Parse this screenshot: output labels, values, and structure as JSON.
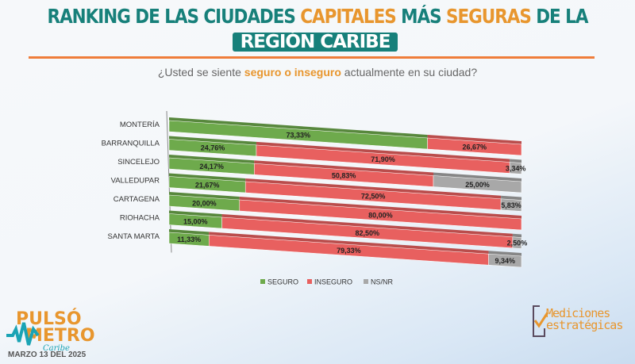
{
  "header": {
    "title_part1": "RANKING DE LAS CIUDADES ",
    "title_part2": "CAPITALES",
    "title_part3": " MÁS ",
    "title_part4": "SEGURAS",
    "title_part5": " DE LA",
    "title_line2": "REGIÓN CARIBE",
    "question_part1": "¿Usted se siente ",
    "question_part2": "seguro o inseguro",
    "question_part3": " actualmente en su ciudad?"
  },
  "colors": {
    "teal": "#17807a",
    "orange": "#e8962e",
    "rule": "#ef7d3a"
  },
  "chart_data": {
    "type": "bar",
    "orientation": "horizontal",
    "stacked": true,
    "style": "3d",
    "categories": [
      "MONTERÍA",
      "BARRANQUILLA",
      "SINCELEJO",
      "VALLEDUPAR",
      "CARTAGENA",
      "RIOHACHA",
      "SANTA MARTA"
    ],
    "series": [
      {
        "name": "SEGURO",
        "color": "#6eaa4c",
        "values": [
          73.33,
          24.76,
          24.17,
          21.67,
          20.0,
          15.0,
          11.33
        ],
        "labels": [
          "73,33%",
          "24,76%",
          "24,17%",
          "21,67%",
          "20,00%",
          "15,00%",
          "11,33%"
        ]
      },
      {
        "name": "INSEGURO",
        "color": "#e8605f",
        "values": [
          26.67,
          71.9,
          50.83,
          72.5,
          80.0,
          82.5,
          79.33
        ],
        "labels": [
          "26,67%",
          "71,90%",
          "50,83%",
          "72,50%",
          "80,00%",
          "82,50%",
          "79,33%"
        ]
      },
      {
        "name": "NS/NR",
        "color": "#a8a8a8",
        "values": [
          0,
          3.34,
          25.0,
          5.83,
          0,
          2.5,
          9.34
        ],
        "labels": [
          "",
          "3,34%",
          "25,00%",
          "5,83%",
          "",
          "2,50%",
          "9,34%"
        ]
      }
    ],
    "xlim": [
      0,
      100
    ],
    "grid": false,
    "legend": "bottom"
  },
  "footer": {
    "brand_left_line1": "PULSÓ",
    "brand_left_line2": "METRO",
    "brand_left_sub": "Caribe",
    "date": "MARZO 13 DEL 2025",
    "brand_right_line1": "Mediciones",
    "brand_right_line2": "estratégicas"
  }
}
